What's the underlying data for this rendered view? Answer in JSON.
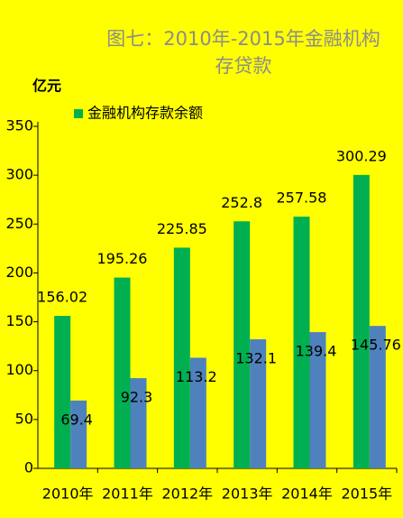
{
  "chart_data": {
    "type": "bar",
    "title": "图七：2010年-2015年金融机构存贷款",
    "y_label": "亿元",
    "categories": [
      "2010年",
      "2011年",
      "2012年",
      "2013年",
      "2014年",
      "2015年"
    ],
    "series": [
      {
        "name": "金融机构存款余额",
        "color": "#00b050",
        "values": [
          156.02,
          195.26,
          225.85,
          252.8,
          257.58,
          300.29
        ]
      },
      {
        "color": "#4f81bd",
        "values": [
          69.4,
          92.3,
          113.2,
          132.1,
          139.4,
          145.76
        ]
      }
    ],
    "ylim": [
      0,
      350
    ],
    "yticks": [
      0,
      50,
      100,
      150,
      200,
      250,
      300,
      350
    ]
  }
}
